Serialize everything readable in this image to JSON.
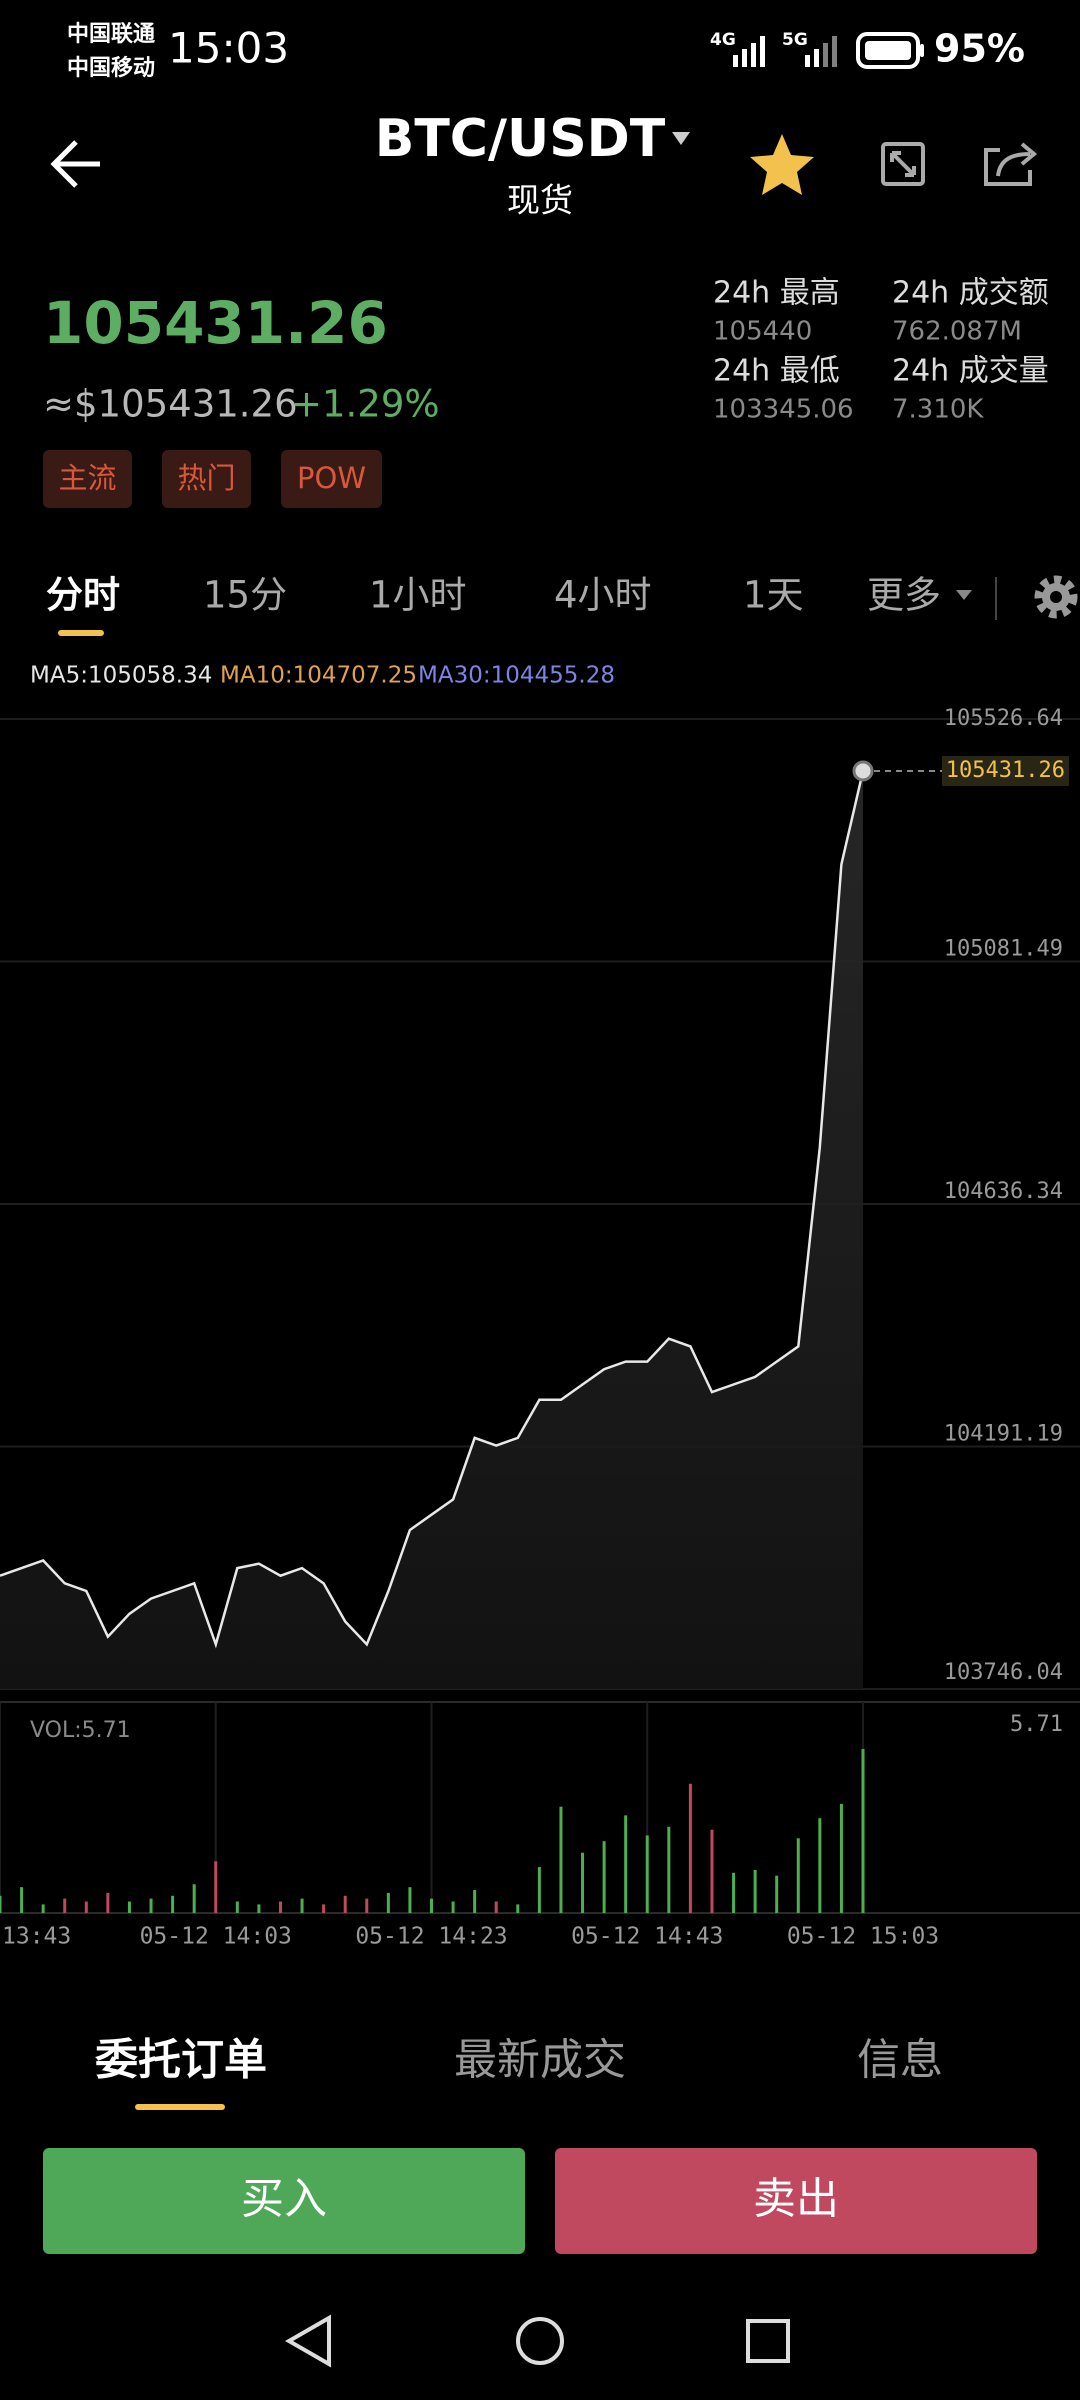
{
  "status_bar": {
    "carriers": [
      "中国联通",
      "中国移动"
    ],
    "time": "15:03",
    "network": [
      "4G",
      "5G"
    ],
    "battery": "95%"
  },
  "header": {
    "pair": "BTC/USDT",
    "market": "现货"
  },
  "ticker": {
    "price": "105431.26",
    "fiat": "≈$105431.26",
    "change": "+1.29%",
    "tags": [
      "主流",
      "热门",
      "POW"
    ],
    "stats": [
      {
        "label": "24h 最高",
        "value": "105440"
      },
      {
        "label": "24h 成交额",
        "value": "762.087M"
      },
      {
        "label": "24h 最低",
        "value": "103345.06"
      },
      {
        "label": "24h 成交量",
        "value": "7.310K"
      }
    ]
  },
  "tabs": {
    "items": [
      "分时",
      "15分",
      "1小时",
      "4小时",
      "1天"
    ],
    "more": "更多"
  },
  "indicators": [
    {
      "text": "MA5:105058.34",
      "color": "#e6e6e6"
    },
    {
      "text": "MA10:104707.25",
      "color": "#e0a24f"
    },
    {
      "text": "MA30:104455.28",
      "color": "#7f83e4"
    }
  ],
  "chart_data": [
    {
      "type": "line",
      "color": "#e8e8e8",
      "ylim": [
        103746.04,
        105526.64
      ],
      "yticks": [
        103746.04,
        104191.19,
        104636.34,
        105081.49,
        105526.64
      ],
      "x_labels": [
        "13:43",
        "05-12 14:03",
        "05-12 14:23",
        "05-12 14:43",
        "05-12 15:03"
      ],
      "values": [
        103954,
        103968,
        103982,
        103940,
        103926,
        103842,
        103884,
        103912,
        103926,
        103940,
        103828,
        103968,
        103976,
        103954,
        103968,
        103940,
        103870,
        103828,
        103926,
        104038,
        104066,
        104094,
        104207,
        104193,
        104207,
        104277,
        104277,
        104305,
        104333,
        104347,
        104347,
        104389,
        104375,
        104291,
        104305,
        104319,
        104347,
        104375,
        104740,
        105260,
        105431.26
      ]
    },
    {
      "type": "bar",
      "title": "VOL:5.71",
      "up_color": "#4caf50",
      "down_color": "#c0485f",
      "ylim": [
        0,
        5.71
      ],
      "yticks": [
        5.71
      ],
      "values": [
        0.6,
        0.9,
        0.3,
        0.5,
        0.4,
        0.7,
        0.4,
        0.5,
        0.6,
        1.0,
        1.8,
        0.4,
        0.3,
        0.4,
        0.5,
        0.3,
        0.6,
        0.5,
        0.7,
        0.9,
        0.5,
        0.4,
        0.8,
        0.4,
        0.3,
        1.6,
        3.7,
        2.1,
        2.5,
        3.4,
        2.7,
        3.0,
        4.5,
        2.9,
        1.4,
        1.5,
        1.3,
        2.6,
        3.3,
        3.8,
        5.71
      ]
    }
  ],
  "order_tabs": [
    "委托订单",
    "最新成交",
    "信息"
  ],
  "actions": {
    "buy": "买入",
    "sell": "卖出"
  }
}
